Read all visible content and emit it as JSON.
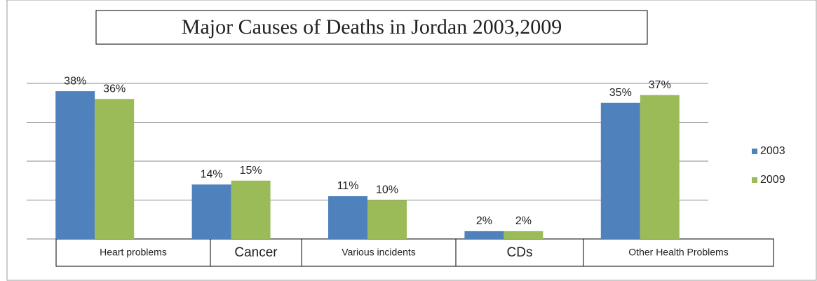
{
  "chart_data": {
    "type": "bar",
    "title": "Major Causes of Deaths in Jordan 2003,2009",
    "categories": [
      "Heart problems",
      "Cancer",
      "Various incidents",
      "CDs",
      "Other Health Problems"
    ],
    "series": [
      {
        "name": "2003",
        "color": "#4f81bd",
        "values": [
          38,
          14,
          11,
          2,
          35
        ],
        "value_labels": [
          "38%",
          "14%",
          "11%",
          "2%",
          "35%"
        ]
      },
      {
        "name": "2009",
        "color": "#9bbb59",
        "values": [
          36,
          15,
          10,
          2,
          37
        ],
        "value_labels": [
          "36%",
          "15%",
          "10%",
          "2%",
          "37%"
        ]
      }
    ],
    "ylim": [
      0,
      40
    ],
    "yticks": [
      0,
      10,
      20,
      30,
      40
    ],
    "ytick_labels": false,
    "grid": true,
    "legend": "right"
  }
}
